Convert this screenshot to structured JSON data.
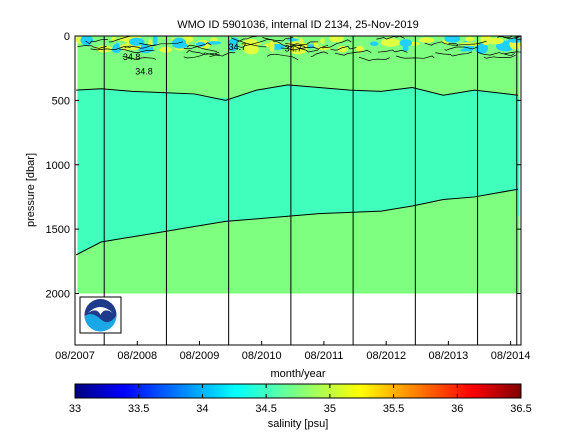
{
  "chart_data": {
    "type": "heatmap",
    "title": "WMO ID 5901036, internal ID 2134, 25-Nov-2019",
    "xlabel": "month/year",
    "ylabel": "pressure [dbar]",
    "x_range": [
      "2007-08-01",
      "2014-10-01"
    ],
    "x_tick_labels": [
      "08/2007",
      "08/2008",
      "08/2009",
      "08/2010",
      "08/2011",
      "08/2012",
      "08/2013",
      "08/2014"
    ],
    "x_tick_dates": [
      "2007-08-01",
      "2008-08-01",
      "2009-08-01",
      "2010-08-01",
      "2011-08-01",
      "2012-08-01",
      "2013-08-01",
      "2014-08-01"
    ],
    "ylim": [
      2400,
      0
    ],
    "y_ticks": [
      0,
      500,
      1000,
      1500,
      2000
    ],
    "grid": false,
    "profile_lines_years": [
      2008.0,
      2009.0,
      2010.0,
      2011.0,
      2012.0,
      2013.0,
      2014.0,
      2014.0
    ],
    "fill_bands": [
      {
        "salinity_range": [
          34.5,
          34.75
        ],
        "top_dbar": 60,
        "bottom_dbar": 1400
      },
      {
        "salinity_range": [
          34.75,
          35.0
        ],
        "top_dbar": 1400,
        "bottom_dbar": 2000
      },
      {
        "salinity_range": [
          34.75,
          35.0
        ],
        "top_dbar": 60,
        "bottom_dbar": 480
      }
    ],
    "contour_lines": [
      {
        "level": 34.7,
        "label": "34.7",
        "points": [
          [
            2007.6,
            1700
          ],
          [
            2008.0,
            1600
          ],
          [
            2008.5,
            1560
          ],
          [
            2009.0,
            1520
          ],
          [
            2009.5,
            1480
          ],
          [
            2010.0,
            1440
          ],
          [
            2010.5,
            1420
          ],
          [
            2011.0,
            1400
          ],
          [
            2011.5,
            1380
          ],
          [
            2012.0,
            1370
          ],
          [
            2012.5,
            1360
          ],
          [
            2013.0,
            1320
          ],
          [
            2013.5,
            1270
          ],
          [
            2014.0,
            1250
          ],
          [
            2014.7,
            1190
          ]
        ]
      },
      {
        "level": 34.8,
        "label": "34.8",
        "points": [
          [
            2007.6,
            420
          ],
          [
            2008.0,
            410
          ],
          [
            2008.5,
            430
          ],
          [
            2009.0,
            440
          ],
          [
            2009.5,
            450
          ],
          [
            2010.0,
            500
          ],
          [
            2010.5,
            420
          ],
          [
            2011.0,
            380
          ],
          [
            2011.5,
            400
          ],
          [
            2012.0,
            420
          ],
          [
            2012.5,
            430
          ],
          [
            2013.0,
            400
          ],
          [
            2013.5,
            460
          ],
          [
            2014.0,
            420
          ],
          [
            2014.7,
            460
          ]
        ]
      }
    ],
    "contour_annotations": [
      "34.8",
      "34.7",
      "34.7",
      "34.8"
    ],
    "colorbar": {
      "label": "salinity [psu]",
      "min": 33,
      "max": 36.5,
      "tick_labels": [
        "33",
        "33.5",
        "34",
        "34.5",
        "35",
        "35.5",
        "36",
        "36.5"
      ],
      "colormap": "jet"
    },
    "logo_text": "NOAA",
    "colors": {
      "band_low": "#40ffbd",
      "band_high": "#7fff80",
      "surface_mix": "#e0ff40",
      "surface_blue": "#20d0ff"
    }
  }
}
